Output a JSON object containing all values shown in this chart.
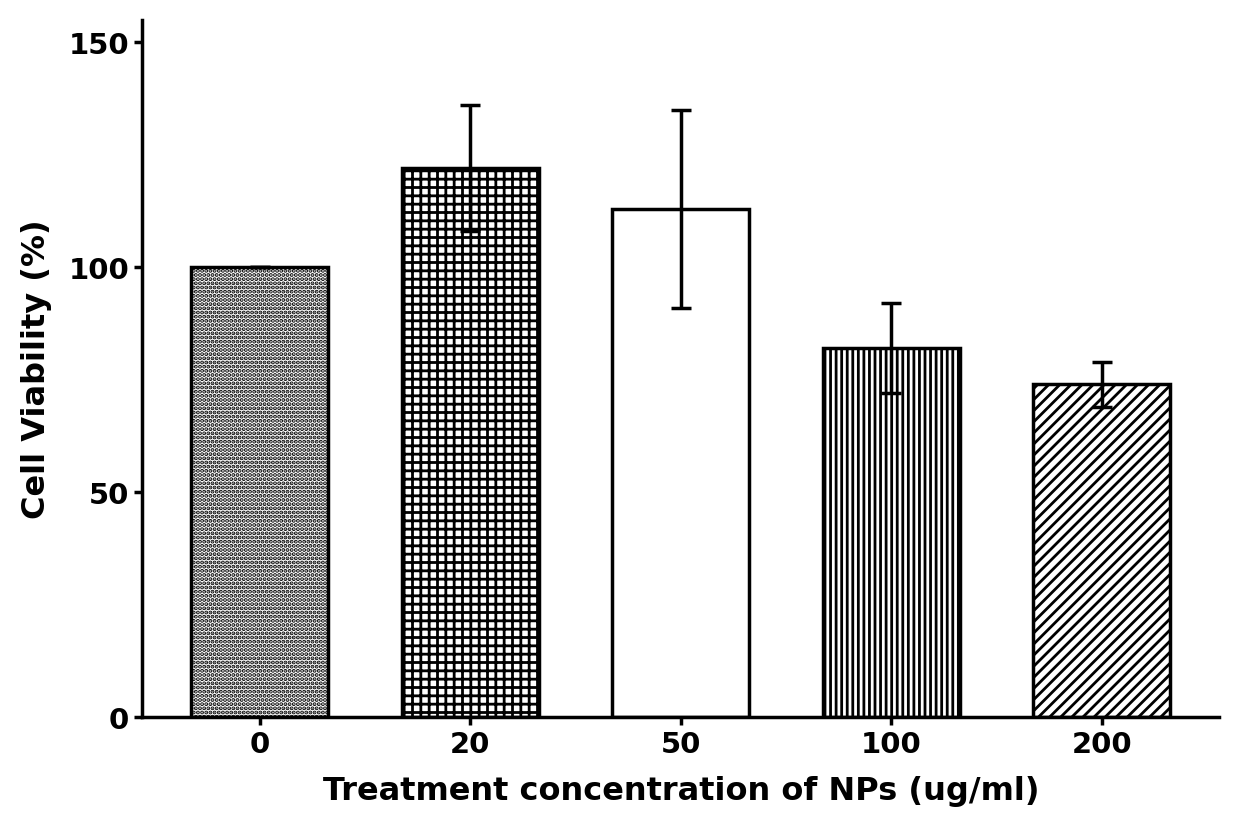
{
  "categories": [
    "0",
    "20",
    "50",
    "100",
    "200"
  ],
  "values": [
    100,
    122,
    113,
    82,
    74
  ],
  "errors": [
    0,
    14,
    22,
    10,
    5
  ],
  "bar_color": "white",
  "bar_edge_color": "black",
  "bar_edge_width": 2.5,
  "bar_width": 0.65,
  "xlabel": "Treatment concentration of NPs (ug/ml)",
  "ylabel": "Cell Viability (%)",
  "ylim": [
    0,
    155
  ],
  "yticks": [
    0,
    50,
    100,
    150
  ],
  "xlabel_fontsize": 23,
  "ylabel_fontsize": 23,
  "tick_fontsize": 21,
  "tick_label_fontweight": "bold",
  "axis_label_fontweight": "bold",
  "background_color": "white",
  "error_cap_size": 7,
  "error_linewidth": 2.5,
  "hatch_linewidth": 2.0,
  "spine_linewidth": 2.5
}
